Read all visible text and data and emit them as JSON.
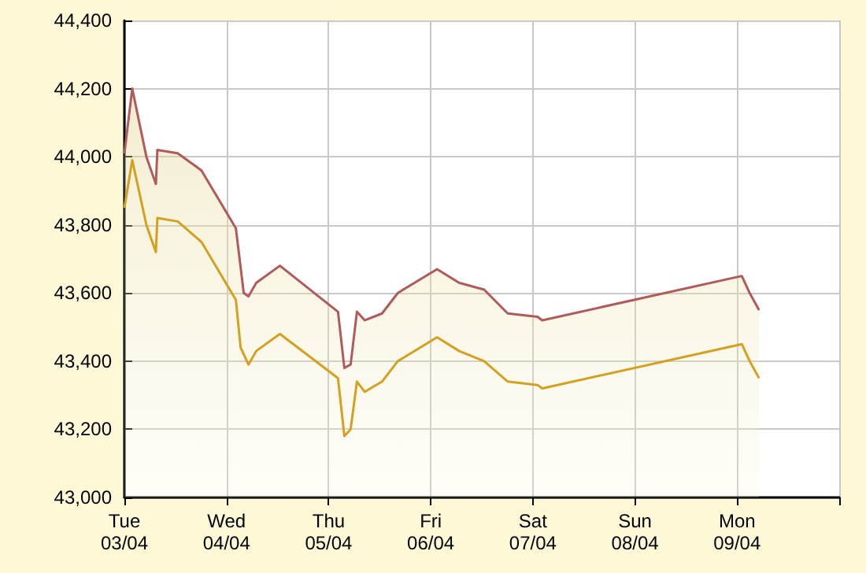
{
  "chart_data": {
    "type": "area",
    "xlim": [
      "--04-03",
      "--04-10"
    ],
    "xticks": [
      {
        "value": "--04-03",
        "label": "Tue\n03/04"
      },
      {
        "value": "--04-04",
        "label": "Wed\n04/04"
      },
      {
        "value": "--04-05",
        "label": "Thu\n05/04"
      },
      {
        "value": "--04-06",
        "label": "Fri\n06/04"
      },
      {
        "value": "--04-07",
        "label": "Sat\n07/04"
      },
      {
        "value": "--04-08",
        "label": "Sun\n08/04"
      },
      {
        "value": "--04-09",
        "label": "Mon\n09/04"
      },
      {
        "value": "--04-10",
        "label": null
      }
    ],
    "ylim": [
      43000,
      44400
    ],
    "yticks": [
      {
        "value": 43000,
        "label": "43,000"
      },
      {
        "value": 43200,
        "label": "43,200"
      },
      {
        "value": 43400,
        "label": "43,400"
      },
      {
        "value": 43600,
        "label": "43,600"
      },
      {
        "value": 43800,
        "label": "43,800"
      },
      {
        "value": 44000,
        "label": "44,000"
      },
      {
        "value": 44200,
        "label": "44,200"
      },
      {
        "value": 44400,
        "label": "44,400"
      }
    ],
    "grid": true,
    "series": [
      {
        "color": "#b05a5a",
        "x": [
          "--04-03T00:00",
          "--04-03T01:51",
          "--04-03T05:10",
          "--04-03T07:24",
          "--04-03T07:45",
          "--04-03T12:33",
          "--04-03T18:06",
          "--04-04T02:12",
          "--04-04T04:03",
          "--04-04T05:10",
          "--04-04T07:00",
          "--04-04T12:33",
          "--04-05T02:12",
          "--04-05T03:42",
          "--04-05T05:10",
          "--04-05T06:39",
          "--04-05T08:30",
          "--04-05T12:33",
          "--04-05T16:15",
          "--04-06T01:29",
          "--04-06T06:39",
          "--04-06T12:33",
          "--04-06T18:06",
          "--04-07T01:06",
          "--04-07T02:12",
          "--04-09T01:06",
          "--04-09T02:57",
          "--04-09T05:10"
        ],
        "values": [
          44010,
          44200,
          44000,
          43920,
          44020,
          44010,
          43960,
          43790,
          43600,
          43590,
          43630,
          43680,
          43545,
          43380,
          43390,
          43545,
          43520,
          43540,
          43600,
          43670,
          43630,
          43610,
          43540,
          43530,
          43520,
          43650,
          43600,
          43550
        ]
      },
      {
        "type": "line",
        "color": "#d4a020",
        "x": [
          "--04-03T00:00",
          "--04-03T01:51",
          "--04-03T05:10",
          "--04-03T07:24",
          "--04-03T07:45",
          "--04-03T12:33",
          "--04-03T18:06",
          "--04-04T02:12",
          "--04-04T03:19",
          "--04-04T05:10",
          "--04-04T07:00",
          "--04-04T12:33",
          "--04-05T02:12",
          "--04-05T03:42",
          "--04-05T05:10",
          "--04-05T06:39",
          "--04-05T08:30",
          "--04-05T12:33",
          "--04-05T16:15",
          "--04-06T01:29",
          "--04-06T06:39",
          "--04-06T12:33",
          "--04-06T18:06",
          "--04-07T01:06",
          "--04-07T02:12",
          "--04-09T01:06",
          "--04-09T02:57",
          "--04-09T05:10"
        ],
        "values": [
          43850,
          43990,
          43800,
          43720,
          43820,
          43810,
          43750,
          43580,
          43440,
          43390,
          43430,
          43480,
          43350,
          43180,
          43200,
          43340,
          43310,
          43340,
          43400,
          43470,
          43430,
          43400,
          43340,
          43330,
          43320,
          43450,
          43400,
          43350
        ]
      }
    ]
  }
}
